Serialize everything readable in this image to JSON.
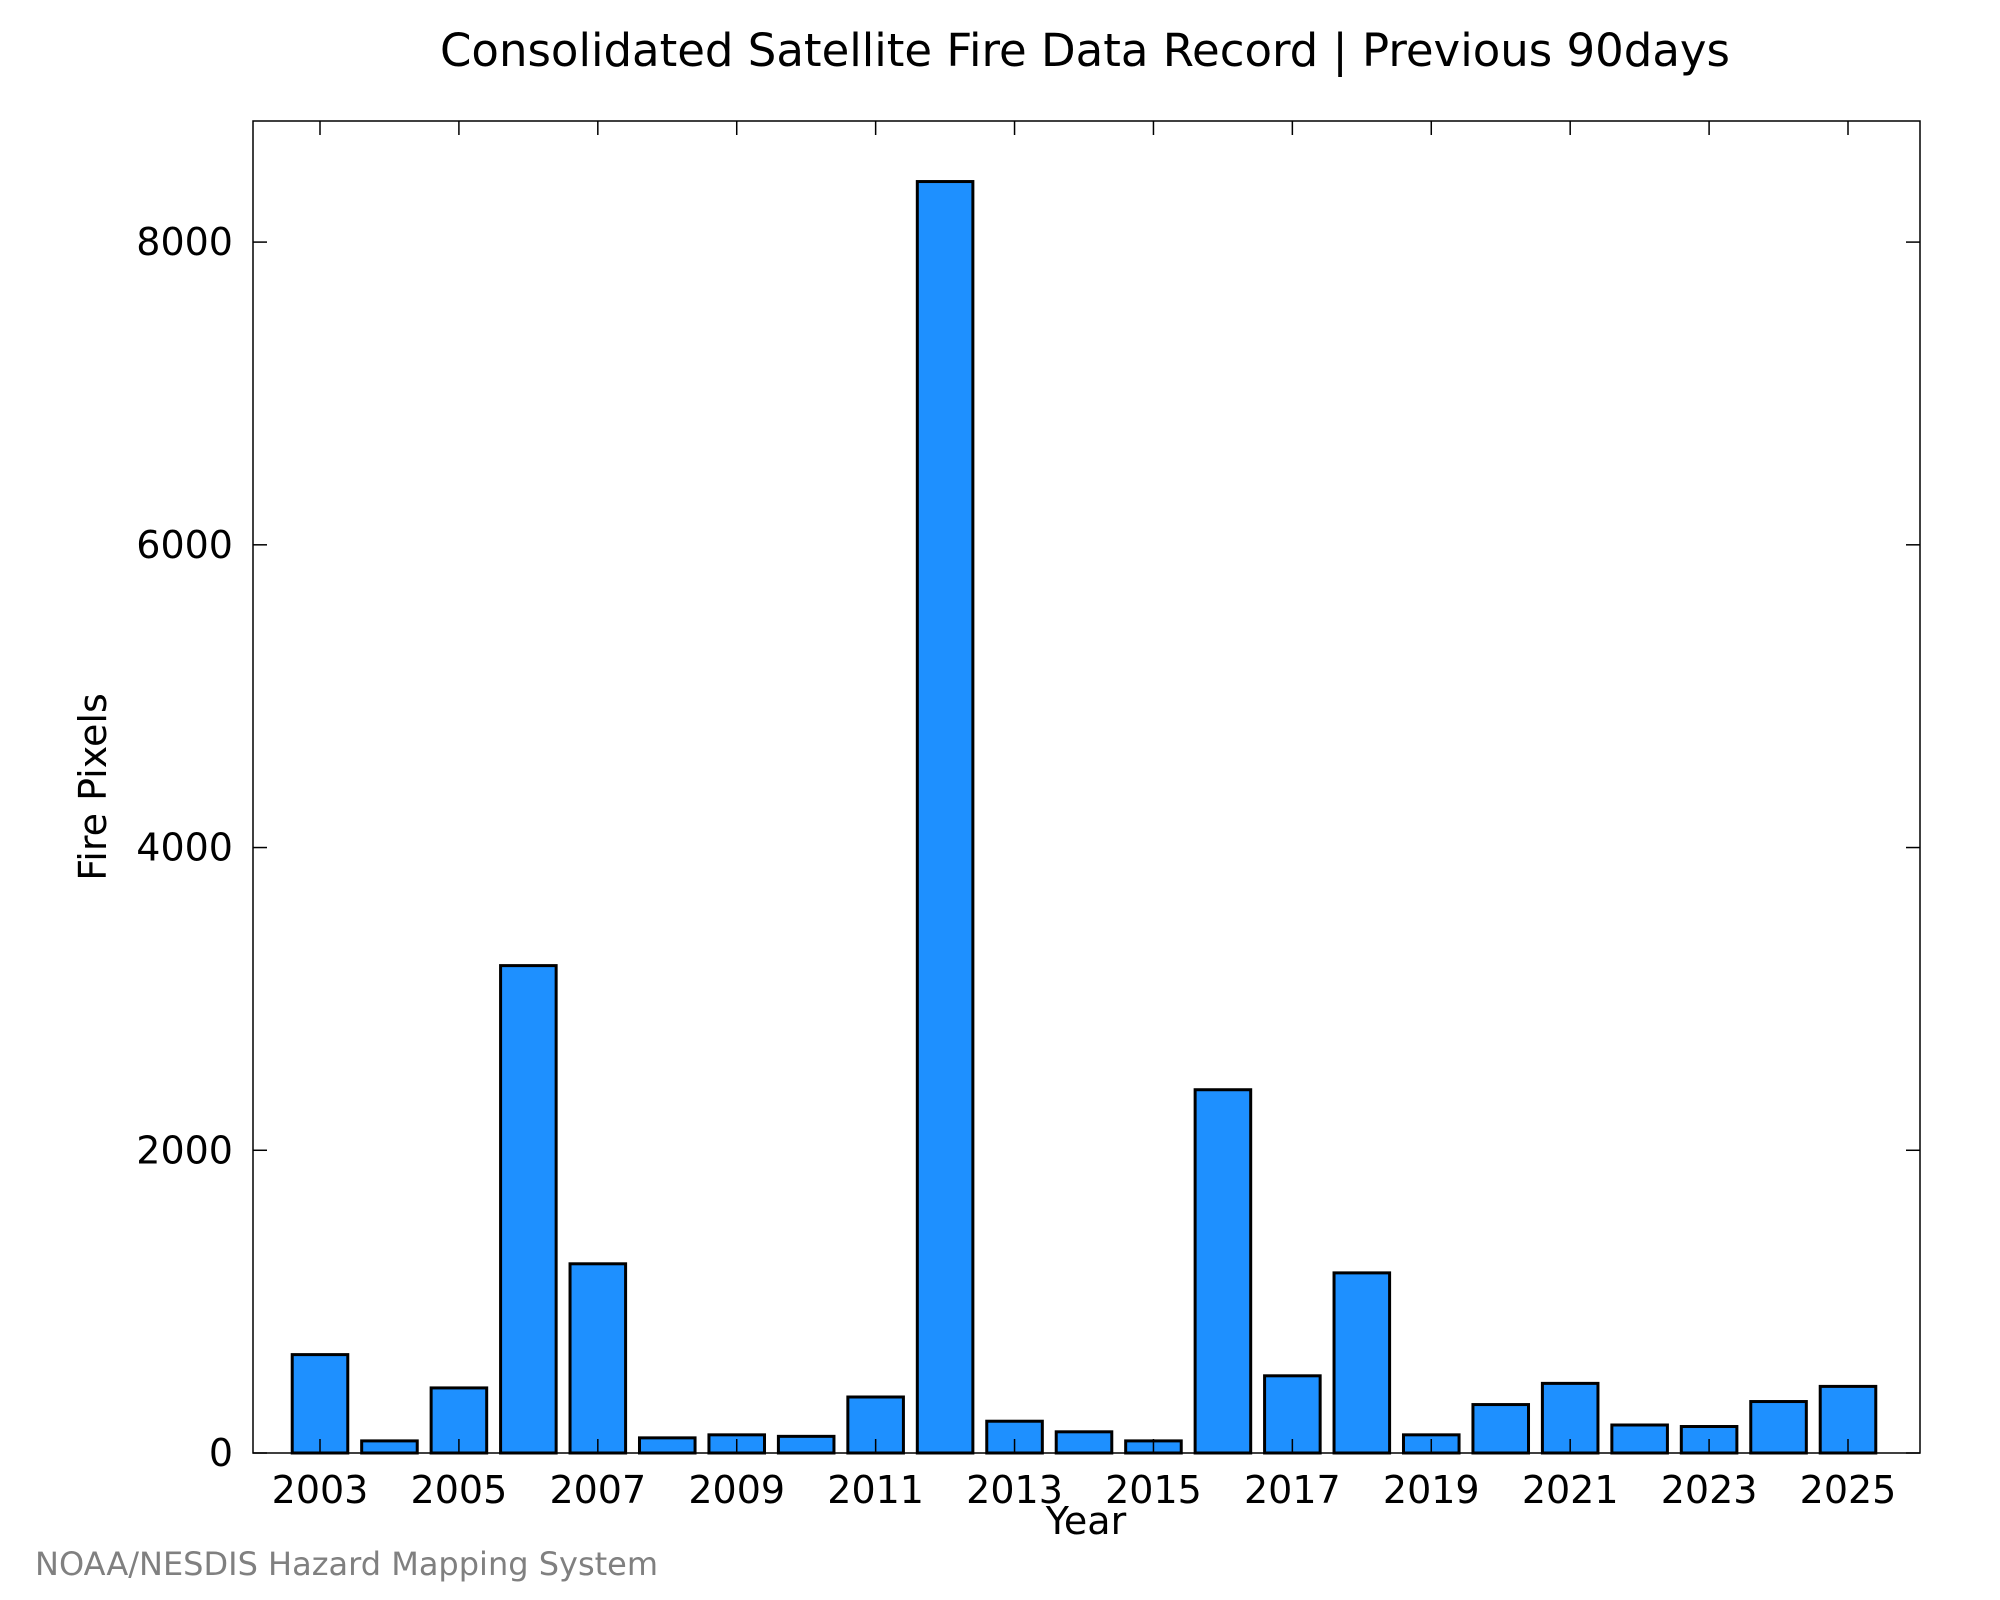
{
  "chart_data": {
    "type": "bar",
    "title": "Consolidated Satellite Fire Data Record | Previous 90days",
    "xlabel": "Year",
    "ylabel": "Fire Pixels",
    "ylim": [
      0,
      8800
    ],
    "yticks": [
      0,
      2000,
      4000,
      6000,
      8000
    ],
    "xtick_labels": [
      "2003",
      "2005",
      "2007",
      "2009",
      "2011",
      "2013",
      "2015",
      "2017",
      "2019",
      "2021",
      "2023",
      "2025"
    ],
    "categories": [
      "2003",
      "2004",
      "2005",
      "2006",
      "2007",
      "2008",
      "2009",
      "2010",
      "2011",
      "2012",
      "2013",
      "2014",
      "2015",
      "2016",
      "2017",
      "2018",
      "2019",
      "2020",
      "2021",
      "2022",
      "2023",
      "2024",
      "2025"
    ],
    "values": [
      650,
      80,
      430,
      3220,
      1250,
      100,
      120,
      110,
      370,
      8400,
      210,
      140,
      80,
      2400,
      510,
      1190,
      120,
      320,
      460,
      185,
      175,
      340,
      440
    ],
    "bar_color": "#1e90ff",
    "grid": false
  },
  "credit": "NOAA/NESDIS Hazard Mapping System"
}
